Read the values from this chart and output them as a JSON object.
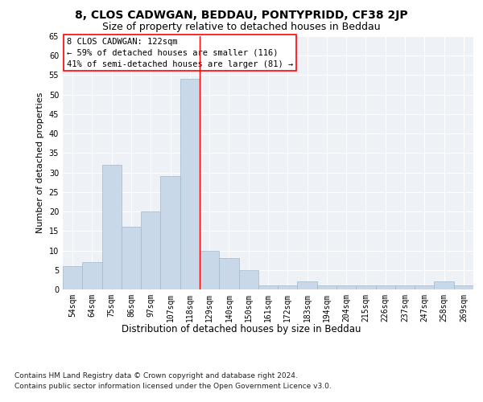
{
  "title1": "8, CLOS CADWGAN, BEDDAU, PONTYPRIDD, CF38 2JP",
  "title2": "Size of property relative to detached houses in Beddau",
  "xlabel": "Distribution of detached houses by size in Beddau",
  "ylabel": "Number of detached properties",
  "categories": [
    "54sqm",
    "64sqm",
    "75sqm",
    "86sqm",
    "97sqm",
    "107sqm",
    "118sqm",
    "129sqm",
    "140sqm",
    "150sqm",
    "161sqm",
    "172sqm",
    "183sqm",
    "194sqm",
    "204sqm",
    "215sqm",
    "226sqm",
    "237sqm",
    "247sqm",
    "258sqm",
    "269sqm"
  ],
  "values": [
    6,
    7,
    32,
    16,
    20,
    29,
    54,
    10,
    8,
    5,
    1,
    1,
    2,
    1,
    1,
    1,
    1,
    1,
    1,
    2,
    1
  ],
  "bar_color": "#c8d8e8",
  "bar_edge_color": "#a0b8cc",
  "red_line_index": 6.5,
  "annotation_title": "8 CLOS CADWGAN: 122sqm",
  "annotation_line1": "← 59% of detached houses are smaller (116)",
  "annotation_line2": "41% of semi-detached houses are larger (81) →",
  "footnote1": "Contains HM Land Registry data © Crown copyright and database right 2024.",
  "footnote2": "Contains public sector information licensed under the Open Government Licence v3.0.",
  "ylim": [
    0,
    65
  ],
  "yticks": [
    0,
    5,
    10,
    15,
    20,
    25,
    30,
    35,
    40,
    45,
    50,
    55,
    60,
    65
  ],
  "bg_color": "#eef2f7",
  "grid_color": "#ffffff",
  "title1_fontsize": 10,
  "title2_fontsize": 9,
  "xlabel_fontsize": 8.5,
  "ylabel_fontsize": 8,
  "tick_fontsize": 7,
  "annot_fontsize": 7.5,
  "footnote_fontsize": 6.5
}
